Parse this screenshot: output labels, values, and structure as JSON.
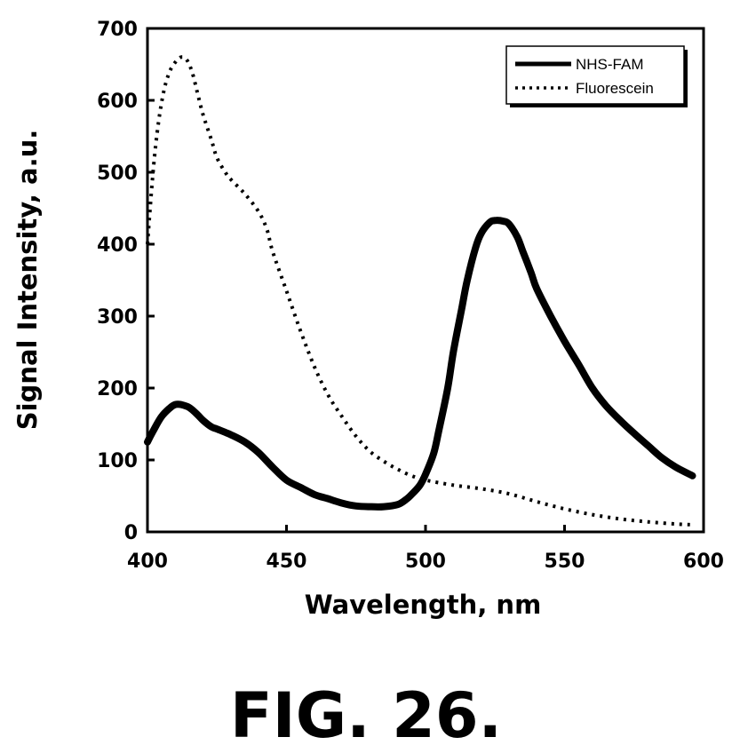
{
  "caption": "FIG. 26.",
  "chart_data": {
    "type": "line",
    "xlabel": "Wavelength, nm",
    "ylabel": "Signal Intensity, a.u.",
    "xlim": [
      400,
      600
    ],
    "ylim": [
      0,
      700
    ],
    "xticks": [
      "400",
      "450",
      "500",
      "550",
      "600"
    ],
    "yticks": [
      "0",
      "100",
      "200",
      "300",
      "400",
      "500",
      "600",
      "700"
    ],
    "grid": false,
    "legend_position": "top-right",
    "series": [
      {
        "name": "NHS-FAM",
        "style": "solid",
        "color": "#000000",
        "x": [
          400,
          402,
          405,
          408,
          410,
          412,
          415,
          418,
          420,
          423,
          425,
          430,
          435,
          440,
          445,
          450,
          455,
          460,
          465,
          470,
          475,
          480,
          485,
          490,
          493,
          495,
          498,
          500,
          503,
          505,
          508,
          510,
          513,
          515,
          518,
          520,
          523,
          525,
          528,
          530,
          533,
          535,
          538,
          540,
          545,
          550,
          555,
          560,
          565,
          570,
          575,
          580,
          585,
          590,
          596
        ],
        "y": [
          125,
          140,
          160,
          172,
          177,
          177,
          173,
          163,
          155,
          146,
          143,
          135,
          125,
          110,
          90,
          72,
          62,
          52,
          46,
          40,
          36,
          35,
          35,
          38,
          45,
          52,
          65,
          80,
          110,
          145,
          200,
          250,
          310,
          350,
          395,
          415,
          430,
          433,
          432,
          428,
          410,
          390,
          360,
          338,
          300,
          265,
          233,
          200,
          175,
          155,
          137,
          120,
          103,
          90,
          78
        ]
      },
      {
        "name": "Fluorescein",
        "style": "dotted",
        "color": "#000000",
        "x": [
          400,
          402,
          404,
          406,
          408,
          410,
          412,
          414,
          416,
          418,
          420,
          423,
          425,
          428,
          430,
          435,
          440,
          443,
          445,
          450,
          455,
          460,
          465,
          470,
          475,
          480,
          485,
          490,
          495,
          500,
          510,
          520,
          530,
          540,
          550,
          560,
          570,
          580,
          590,
          596
        ],
        "y": [
          400,
          500,
          570,
          615,
          640,
          653,
          660,
          657,
          640,
          610,
          580,
          545,
          520,
          500,
          490,
          470,
          445,
          420,
          390,
          335,
          280,
          230,
          190,
          160,
          133,
          112,
          98,
          87,
          78,
          72,
          65,
          60,
          53,
          42,
          32,
          24,
          18,
          14,
          11,
          10
        ]
      }
    ]
  }
}
